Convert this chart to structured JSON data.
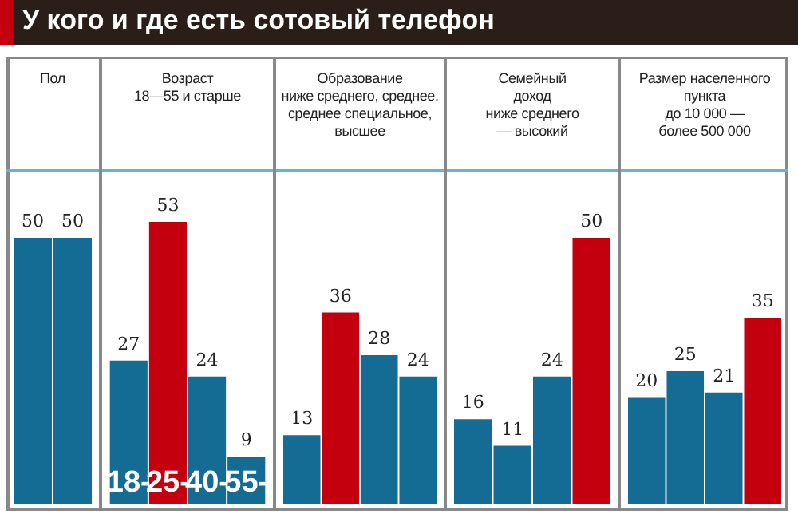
{
  "chart_data": [
    {
      "type": "bar",
      "title": "У кого и где есть сотовый телефон",
      "subtitle": "Пол",
      "categories": [
        null,
        null
      ],
      "values": [
        50,
        50
      ],
      "colors": [
        "#146b93",
        "#146b93"
      ],
      "data_labels": true,
      "tick_labels": false
    },
    {
      "type": "bar",
      "subtitle": "Возраст\n18—55 и старше",
      "categories": [
        "18-",
        "25-",
        "40-",
        "55-"
      ],
      "values": [
        27,
        53,
        24,
        9
      ],
      "colors": [
        "#146b93",
        "#c4000e",
        "#146b93",
        "#146b93"
      ],
      "data_labels": true,
      "tick_labels": "x"
    },
    {
      "type": "bar",
      "subtitle": "Образование\nниже среднего, среднее,\nсреднее специальное,\nвысшее",
      "categories": [
        null,
        null,
        null,
        null
      ],
      "values": [
        13,
        36,
        28,
        24
      ],
      "colors": [
        "#146b93",
        "#c4000e",
        "#146b93",
        "#146b93"
      ],
      "data_labels": true,
      "tick_labels": false
    },
    {
      "type": "bar",
      "subtitle": "Семейный\nдоход\nниже среднего\n— высокий",
      "categories": [
        null,
        null,
        null,
        null
      ],
      "values": [
        16,
        11,
        24,
        50
      ],
      "colors": [
        "#146b93",
        "#146b93",
        "#146b93",
        "#c4000e"
      ],
      "data_labels": true,
      "tick_labels": false
    },
    {
      "type": "bar",
      "subtitle": "Размер населенного\nпункта\nдо 10 000 —\nболее 500 000",
      "categories": [
        null,
        null,
        null,
        null
      ],
      "values": [
        20,
        25,
        21,
        35
      ],
      "colors": [
        "#146b93",
        "#146b93",
        "#146b93",
        "#c4000e"
      ],
      "data_labels": true,
      "tick_labels": false
    }
  ]
}
